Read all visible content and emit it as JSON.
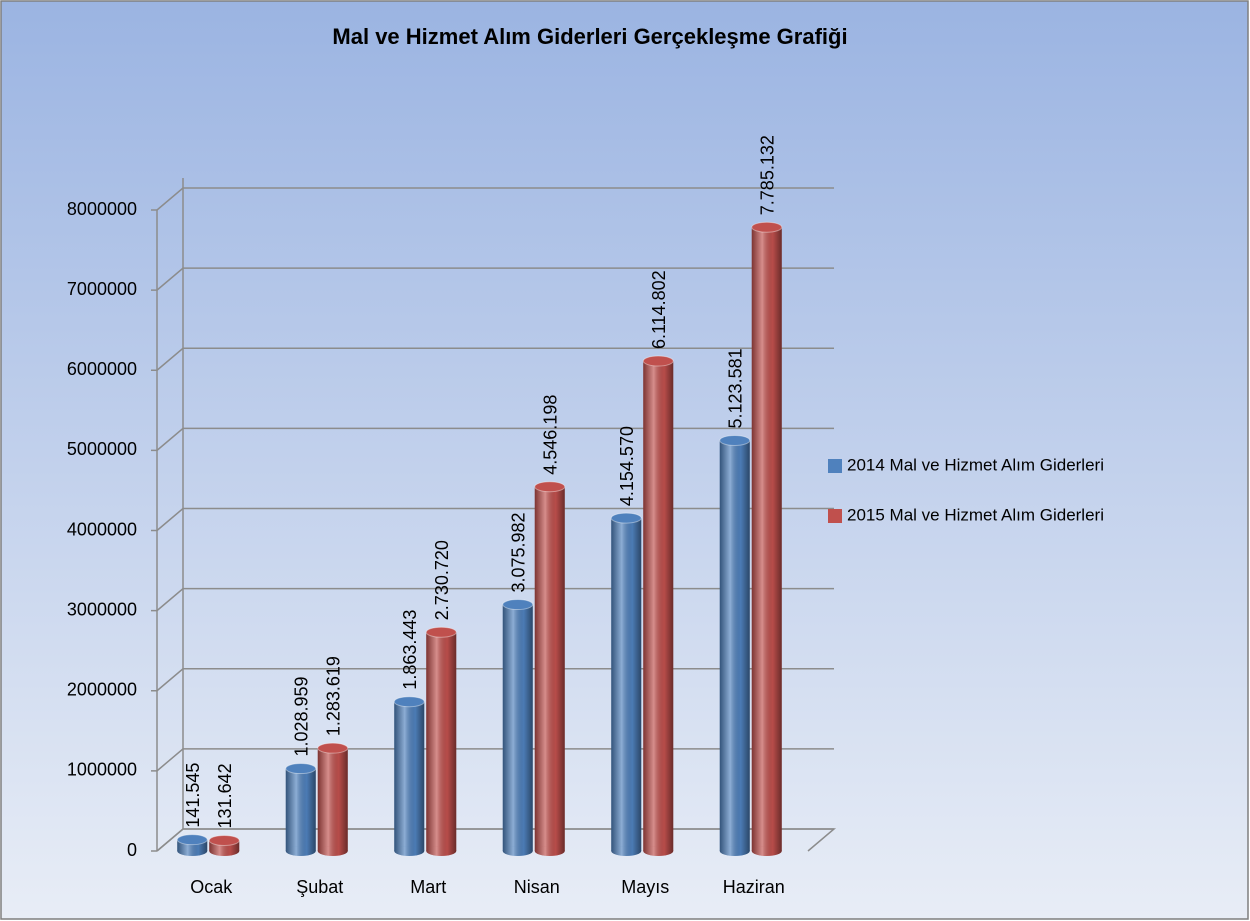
{
  "chart_data": {
    "type": "bar",
    "title": "Mal ve Hizmet Alım Giderleri Gerçekleşme Grafiği",
    "categories": [
      "Ocak",
      "Şubat",
      "Mart",
      "Nisan",
      "Mayıs",
      "Haziran"
    ],
    "series": [
      {
        "name": "2014 Mal ve Hizmet Alım Giderleri",
        "color": "#4f81bd",
        "values": [
          141545,
          1028959,
          1863443,
          3075982,
          4154570,
          5123581
        ],
        "value_labels": [
          "141.545",
          "1.028.959",
          "1.863.443",
          "3.075.982",
          "4.154.570",
          "5.123.581"
        ]
      },
      {
        "name": "2015 Mal ve Hizmet Alım Giderleri",
        "color": "#c0504d",
        "values": [
          131642,
          1283619,
          2730720,
          4546198,
          6114802,
          7785132
        ],
        "value_labels": [
          "131.642",
          "1.283.619",
          "2.730.720",
          "4.546.198",
          "6.114.802",
          "7.785.132"
        ]
      }
    ],
    "ylim": [
      0,
      8000000
    ],
    "yticks": [
      0,
      1000000,
      2000000,
      3000000,
      4000000,
      5000000,
      6000000,
      7000000,
      8000000
    ],
    "grid": true,
    "legend": "right"
  }
}
